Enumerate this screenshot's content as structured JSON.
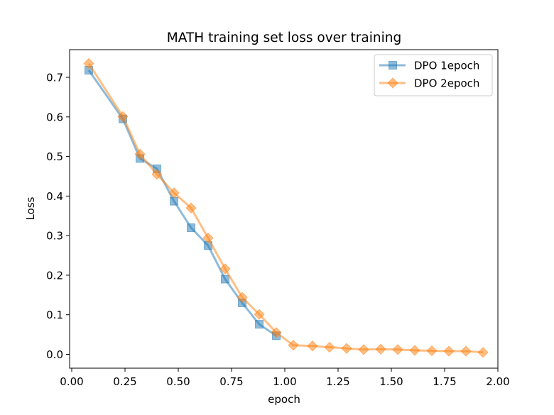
{
  "chart_data": {
    "type": "line",
    "title": "MATH training set loss over training",
    "xlabel": "epoch",
    "ylabel": "Loss",
    "xlim": [
      -0.01,
      2.0
    ],
    "ylim": [
      -0.035,
      0.77
    ],
    "xticks": [
      0.0,
      0.25,
      0.5,
      0.75,
      1.0,
      1.25,
      1.5,
      1.75,
      2.0
    ],
    "xtick_labels": [
      "0.00",
      "0.25",
      "0.50",
      "0.75",
      "1.00",
      "1.25",
      "1.50",
      "1.75",
      "2.00"
    ],
    "yticks": [
      0.0,
      0.1,
      0.2,
      0.3,
      0.4,
      0.5,
      0.6,
      0.7
    ],
    "ytick_labels": [
      "0.0",
      "0.1",
      "0.2",
      "0.3",
      "0.4",
      "0.5",
      "0.6",
      "0.7"
    ],
    "grid": false,
    "legend_position": "top-right",
    "series": [
      {
        "name": "DPO 1epoch",
        "color": "#1f77b4",
        "marker": "square",
        "x": [
          0.08,
          0.24,
          0.32,
          0.4,
          0.48,
          0.56,
          0.64,
          0.72,
          0.8,
          0.88,
          0.96
        ],
        "y": [
          0.718,
          0.595,
          0.495,
          0.469,
          0.387,
          0.32,
          0.275,
          0.19,
          0.13,
          0.076,
          0.047
        ]
      },
      {
        "name": "DPO 2epoch",
        "color": "#ff7f0e",
        "marker": "diamond",
        "x": [
          0.08,
          0.24,
          0.32,
          0.4,
          0.48,
          0.56,
          0.64,
          0.72,
          0.8,
          0.88,
          0.96,
          1.04,
          1.13,
          1.21,
          1.29,
          1.37,
          1.45,
          1.53,
          1.61,
          1.69,
          1.77,
          1.85,
          1.93
        ],
        "y": [
          0.735,
          0.601,
          0.506,
          0.455,
          0.408,
          0.37,
          0.294,
          0.216,
          0.144,
          0.101,
          0.055,
          0.023,
          0.021,
          0.018,
          0.015,
          0.012,
          0.013,
          0.012,
          0.01,
          0.009,
          0.008,
          0.008,
          0.005
        ]
      }
    ]
  }
}
